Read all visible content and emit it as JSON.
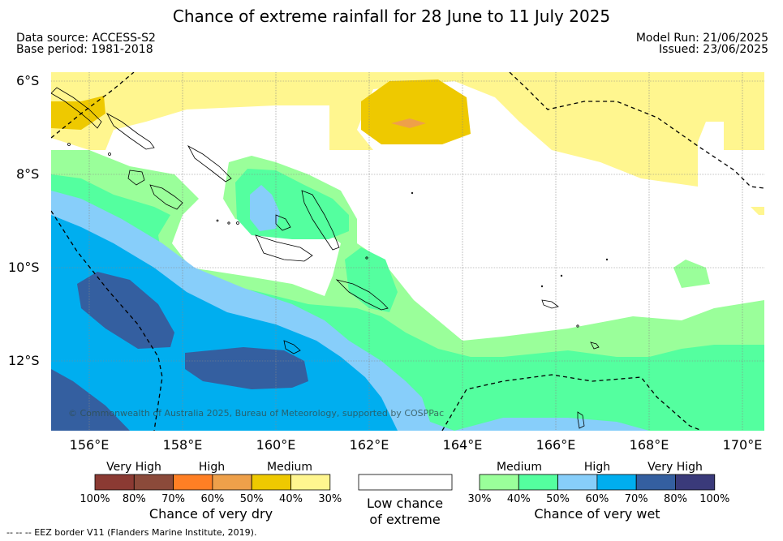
{
  "header": {
    "title": "Chance of extreme rainfall for 28 June to 11 July 2025",
    "data_source": "Data source: ACCESS-S2",
    "base_period": "Base period: 1981-2018",
    "model_run": "Model Run: 21/06/2025",
    "issued": "Issued: 23/06/2025"
  },
  "map": {
    "lat_labels": [
      "6°S",
      "8°S",
      "10°S",
      "12°S"
    ],
    "lon_labels": [
      "156°E",
      "158°E",
      "160°E",
      "162°E",
      "164°E",
      "166°E",
      "168°E",
      "170°E"
    ],
    "copyright": "© Commonwealth of Australia 2025, Bureau of Meteorology, supported by COSPPac"
  },
  "legend": {
    "dry": {
      "levels": [
        "Very High",
        "High",
        "Medium"
      ],
      "ticks": [
        "100%",
        "80%",
        "70%",
        "60%",
        "50%",
        "40%",
        "30%"
      ],
      "colors": [
        "#8b3a33",
        "#8b4a3a",
        "#ff7f24",
        "#eea04a",
        "#eec900",
        "#fff68f"
      ],
      "caption": "Chance of very dry"
    },
    "neutral": {
      "caption_line1": "Low chance",
      "caption_line2": "of extreme",
      "color": "#ffffff"
    },
    "wet": {
      "levels": [
        "Medium",
        "High",
        "Very High"
      ],
      "ticks": [
        "30%",
        "40%",
        "50%",
        "60%",
        "70%",
        "80%",
        "100%"
      ],
      "colors": [
        "#9aff9a",
        "#54ff9f",
        "#87cefa",
        "#00aeef",
        "#345fa0",
        "#3a3a7a"
      ],
      "caption": "Chance of very wet"
    }
  },
  "footer": {
    "eez_note": "--  --  -- EEZ border V11 (Flanders Marine Institute, 2019)."
  }
}
